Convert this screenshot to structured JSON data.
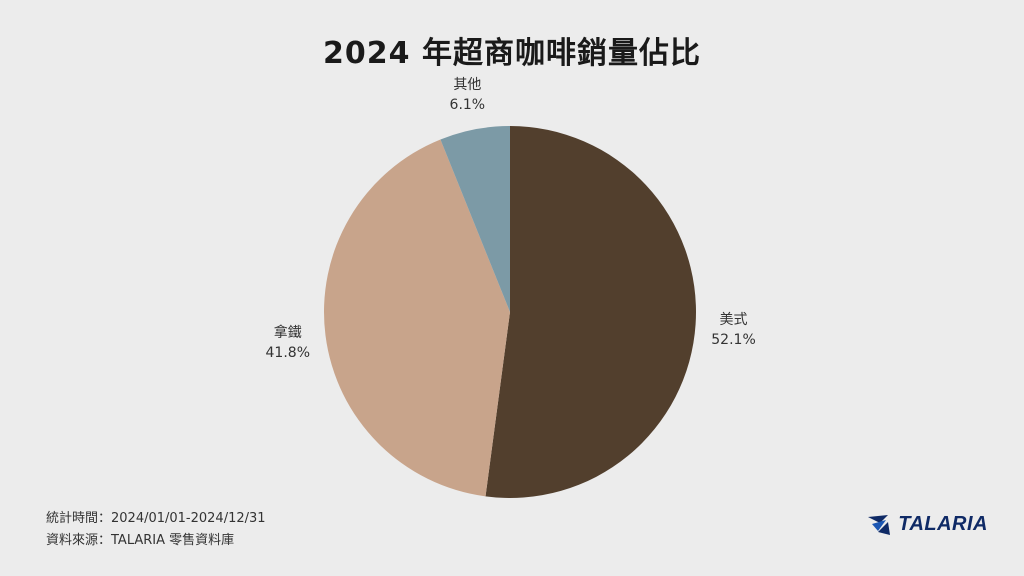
{
  "chart_data": {
    "type": "pie",
    "title": "2024 年超商咖啡銷量佔比",
    "slices": [
      {
        "name": "美式",
        "value": 52.1,
        "label": "52.1%",
        "color": "#523f2d"
      },
      {
        "name": "拿鐵",
        "value": 41.8,
        "label": "41.8%",
        "color": "#c8a48b"
      },
      {
        "name": "其他",
        "value": 6.1,
        "label": "6.1%",
        "color": "#7c9aa6"
      }
    ],
    "legend": "none"
  },
  "footer": {
    "period": "統計時間：2024/01/01-2024/12/31",
    "source": "資料來源：TALARIA 零售資料庫"
  },
  "logo": {
    "text": "TALARIA",
    "icon": "talaria-wing-logo-icon",
    "color": "#0f2a66"
  }
}
